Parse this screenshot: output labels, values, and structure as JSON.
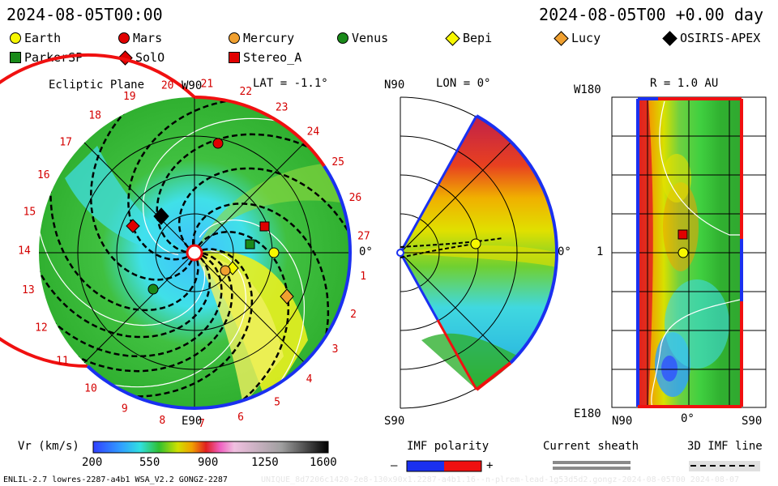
{
  "header": {
    "left_time": "2024-08-05T00:00",
    "right_time": "2024-08-05T00 +0.00 day"
  },
  "legend": [
    {
      "name": "Earth",
      "shape": "circle",
      "color": "#f7f700"
    },
    {
      "name": "Mars",
      "shape": "circle",
      "color": "#e00000"
    },
    {
      "name": "Mercury",
      "shape": "circle",
      "color": "#f0a030"
    },
    {
      "name": "Venus",
      "shape": "circle",
      "color": "#1a8a1a"
    },
    {
      "name": "Bepi",
      "shape": "diamond",
      "color": "#f7f700"
    },
    {
      "name": "Lucy",
      "shape": "diamond",
      "color": "#f0a030"
    },
    {
      "name": "OSIRIS-APEX",
      "shape": "diamond",
      "color": "#000000"
    },
    {
      "name": "ParkerSP",
      "shape": "square",
      "color": "#1a8a1a"
    },
    {
      "name": "SolO",
      "shape": "diamond",
      "color": "#e00000"
    },
    {
      "name": "Stereo_A",
      "shape": "square",
      "color": "#e00000"
    }
  ],
  "ecliptic_panel": {
    "title": "Ecliptic Plane",
    "lat_label": "LAT = -1.1°",
    "top_label": "W90",
    "bottom_label": "E90",
    "right_label": "0°",
    "carrington_labels": [
      "1",
      "2",
      "3",
      "4",
      "5",
      "6",
      "7",
      "8",
      "9",
      "10",
      "11",
      "12",
      "13",
      "14",
      "15",
      "16",
      "17",
      "18",
      "19",
      "20",
      "21",
      "22",
      "23",
      "24",
      "25",
      "26",
      "27"
    ]
  },
  "meridional_panel": {
    "lon_label": "LON = 0°",
    "top_label": "N90",
    "bottom_label": "S90",
    "right_label": "0°"
  },
  "latlon_panel": {
    "r_label": "R = 1.0 AU",
    "top_label": "W180",
    "bottom_label": "E180",
    "mid_label": "1",
    "x_labels": [
      "N90",
      "0°",
      "S90"
    ]
  },
  "colorbar": {
    "label": "Vr (km/s)",
    "ticks": [
      "200",
      "550",
      "900",
      "1250",
      "1600"
    ]
  },
  "imf_polarity": {
    "label": "IMF polarity",
    "minus": "–",
    "plus": "+"
  },
  "current_sheath": {
    "label": "Current sheath"
  },
  "imf_line": {
    "label": "3D IMF line"
  },
  "footer": {
    "left": "ENLIL-2.7 lowres-2287-a4b1 WSA_V2.2 GONGZ-2287",
    "right": "UNIQUE_8d7206c1420-2e8-130x90x1.2287-a4b1.16--n-plrem-lead-1g53d5d2.gongz-2024-08-05T00   2024-08-07"
  }
}
